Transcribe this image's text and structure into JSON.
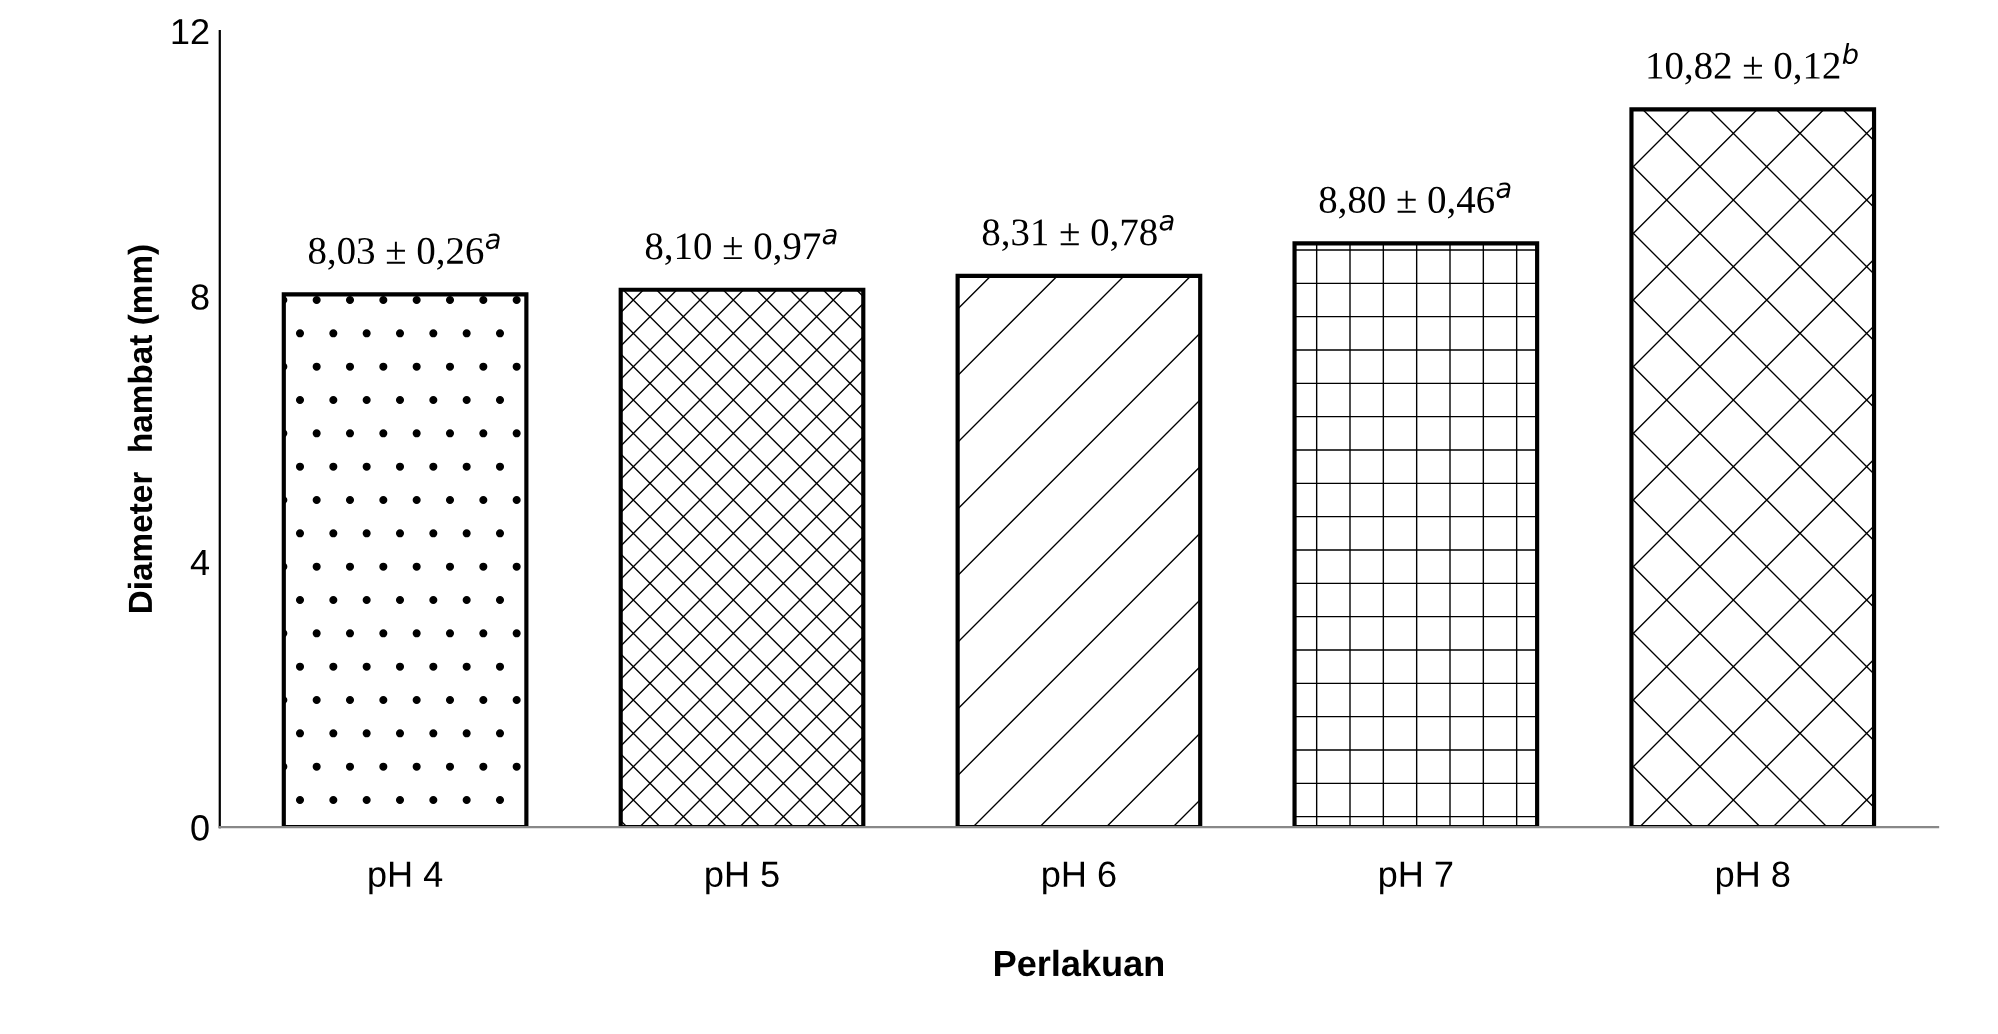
{
  "chart_data": {
    "type": "bar",
    "categories": [
      "pH 4",
      "pH 5",
      "pH 6",
      "pH 7",
      "pH 8"
    ],
    "values": [
      8.03,
      8.1,
      8.31,
      8.8,
      10.82
    ],
    "value_labels": [
      "8,03 ± 0,26$^{a}$",
      "8,10 ± 0,97$^{a}$",
      "8,31 ± 0,78$^{a}$",
      "8,80 ± 0,46$^{a}$",
      "10,82 ± 0,12$^{b}$"
    ],
    "xlabel": "Perlakuan",
    "ylabel": "Diameter  hambat (mm)",
    "ylim": [
      0,
      12
    ],
    "yticks": [
      0,
      4,
      8,
      12
    ],
    "grid": false,
    "legend": false
  }
}
